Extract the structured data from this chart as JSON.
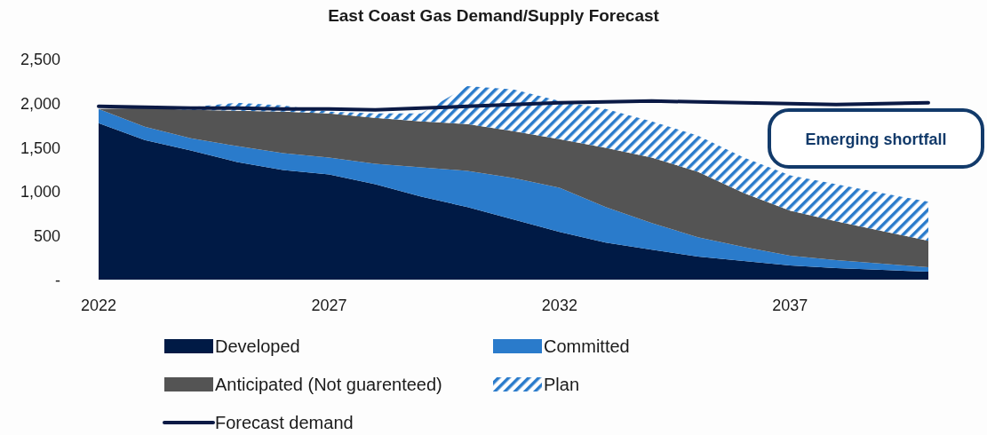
{
  "chart_data": {
    "type": "area",
    "stacked": true,
    "title": "East Coast Gas Demand/Supply Forecast",
    "categories": [
      "2022",
      null,
      null,
      null,
      null,
      "2027",
      null,
      null,
      null,
      null,
      "2032",
      null,
      null,
      null,
      null,
      "2037",
      null,
      null,
      null
    ],
    "ylim": [
      0,
      2500
    ],
    "yticks": [
      {
        "value": 0,
        "label": "-"
      },
      {
        "value": 500,
        "label": "500"
      },
      {
        "value": 1000,
        "label": "1,000"
      },
      {
        "value": 1500,
        "label": "1,500"
      },
      {
        "value": 2000,
        "label": "2,000"
      },
      {
        "value": 2500,
        "label": "2,500"
      }
    ],
    "series": [
      {
        "name": "Developed",
        "color": "#001a45",
        "values": [
          1770,
          1580,
          1460,
          1330,
          1240,
          1190,
          1080,
          940,
          820,
          680,
          540,
          420,
          340,
          260,
          210,
          160,
          130,
          110,
          90
        ]
      },
      {
        "name": "Committed",
        "color": "#2a7bcb",
        "values": [
          160,
          150,
          140,
          180,
          190,
          190,
          230,
          330,
          410,
          470,
          500,
          400,
          300,
          220,
          160,
          110,
          90,
          70,
          50
        ]
      },
      {
        "name": "Anticipated (Not guarenteed)",
        "color": "#545454",
        "values": [
          0,
          210,
          320,
          400,
          470,
          500,
          520,
          520,
          530,
          530,
          550,
          670,
          740,
          740,
          610,
          510,
          440,
          370,
          300
        ]
      },
      {
        "name": "Plan",
        "color": "#2a7bcb",
        "values": [
          0,
          0,
          30,
          90,
          70,
          20,
          50,
          90,
          430,
          470,
          430,
          440,
          410,
          410,
          400,
          400,
          420,
          430,
          440
        ]
      },
      {
        "name": "Forecast demand",
        "type": "line",
        "color": "#0b1a45",
        "values": [
          1960,
          1950,
          1940,
          1940,
          1930,
          1930,
          1920,
          1940,
          1960,
          1980,
          2000,
          2010,
          2020,
          2010,
          2000,
          1990,
          1980,
          1990,
          2000
        ]
      }
    ],
    "annotations": [
      "Emerging shortfall"
    ],
    "legend": "bottom"
  }
}
